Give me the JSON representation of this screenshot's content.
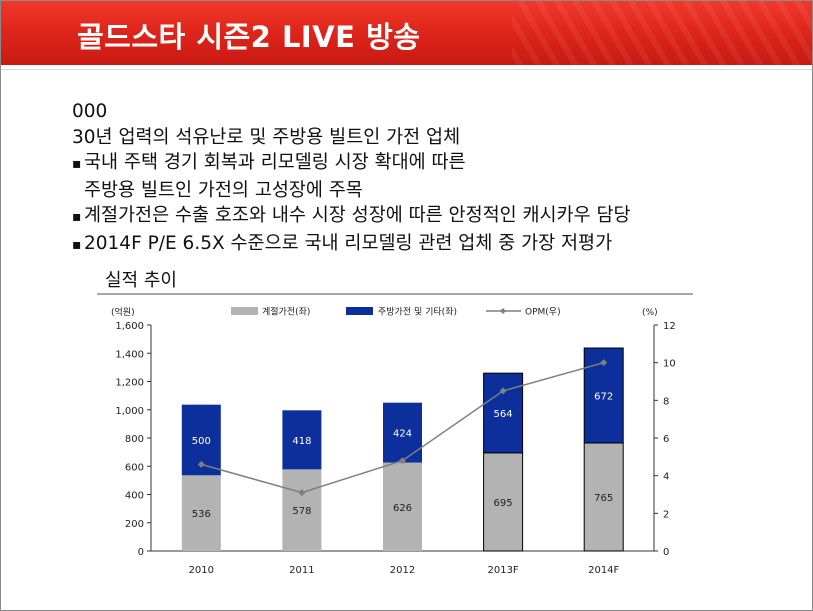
{
  "header": {
    "title": "골드스타 시즌2  LIVE 방송"
  },
  "content": {
    "code": "000",
    "description": "30년 업력의 석유난로 및 주방용 빌트인 가전 업체",
    "bullets": [
      {
        "line1": "국내 주택 경기 회복과 리모델링 시장 확대에 따른",
        "line2": "주방용 빌트인 가전의 고성장에 주목"
      },
      {
        "line1": "계절가전은 수출 호조와 내수 시장 성장에 따른 안정적인 캐시카우 담당"
      },
      {
        "line1": "2014F P/E 6.5X 수준으로 국내 리모델링 관련 업체 중 가장 저평가"
      }
    ],
    "section_title": "실적 추이"
  },
  "colors": {
    "seasonal": "#b3b3b3",
    "kitchen": "#0c2f9c",
    "opm": "#7f7f7f"
  },
  "chart_data": {
    "type": "bar",
    "stacked": true,
    "categories": [
      "2010",
      "2011",
      "2012",
      "2013F",
      "2014F"
    ],
    "series": [
      {
        "name": "계절가전(좌)",
        "values": [
          536,
          578,
          626,
          695,
          765
        ]
      },
      {
        "name": "주방가전 및 기타(좌)",
        "values": [
          500,
          418,
          424,
          564,
          672
        ]
      }
    ],
    "line_series": {
      "name": "OPM(우)",
      "axis": "right",
      "values": [
        4.6,
        3.1,
        4.8,
        8.5,
        10.0
      ]
    },
    "y_left": {
      "unit": "(억원)",
      "lim": [
        0,
        1600
      ],
      "ticks": [
        "0",
        "200",
        "400",
        "600",
        "800",
        "1,000",
        "1,200",
        "1,400",
        "1,600"
      ]
    },
    "y_right": {
      "unit": "(%)",
      "lim": [
        0,
        12
      ],
      "ticks": [
        "0",
        "2",
        "4",
        "6",
        "8",
        "10",
        "12"
      ]
    },
    "forecast_categories": [
      "2013F",
      "2014F"
    ],
    "legend_position": "top",
    "grid": false
  }
}
